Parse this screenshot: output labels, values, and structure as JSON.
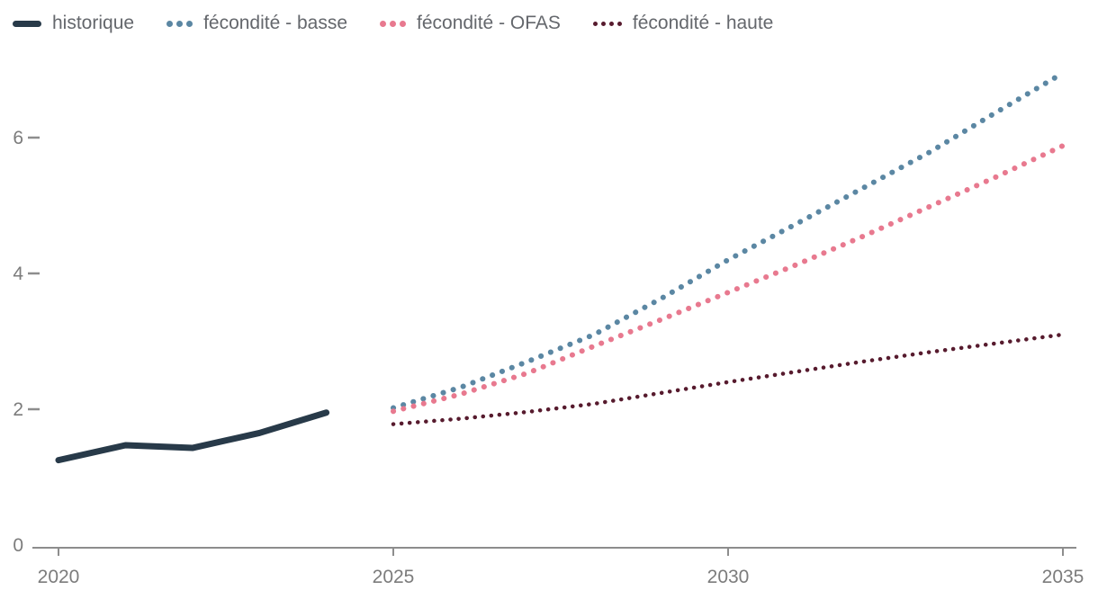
{
  "legend": {
    "items": [
      {
        "label": "historique",
        "color": "#283a49",
        "style": "solid"
      },
      {
        "label": "fécondité - basse",
        "color": "#5b87a3",
        "style": "dotted"
      },
      {
        "label": "fécondité - OFAS",
        "color": "#e8798f",
        "style": "dotted"
      },
      {
        "label": "fécondité - haute",
        "color": "#571b2e",
        "style": "dotted-small"
      }
    ]
  },
  "axes": {
    "x": {
      "tick_labels": [
        "2020",
        "2025",
        "2030",
        "2035"
      ],
      "tick_years": [
        2020,
        2025,
        2030,
        2035
      ]
    },
    "y": {
      "tick_labels": [
        "0",
        "2",
        "4",
        "6"
      ],
      "tick_values": [
        0,
        2,
        4,
        6
      ]
    }
  },
  "chart_data": {
    "type": "line",
    "title": "",
    "xlabel": "",
    "ylabel": "",
    "xlim": [
      2020,
      2035
    ],
    "ylim": [
      0,
      7.2
    ],
    "grid": false,
    "legend_position": "top-left",
    "series": [
      {
        "name": "historique",
        "style": "solid",
        "color": "#283a49",
        "x": [
          2020,
          2021,
          2022,
          2023,
          2024
        ],
        "values": [
          1.25,
          1.47,
          1.43,
          1.65,
          1.95
        ]
      },
      {
        "name": "fécondité - basse",
        "style": "dotted",
        "color": "#5b87a3",
        "x": [
          2025,
          2026,
          2027,
          2028,
          2029,
          2030,
          2031,
          2032,
          2033,
          2034,
          2035
        ],
        "values": [
          2.02,
          2.32,
          2.7,
          3.1,
          3.63,
          4.2,
          4.72,
          5.25,
          5.78,
          6.37,
          6.95
        ]
      },
      {
        "name": "fécondité - OFAS",
        "style": "dotted",
        "color": "#e8798f",
        "x": [
          2025,
          2026,
          2027,
          2028,
          2029,
          2030,
          2031,
          2032,
          2033,
          2034,
          2035
        ],
        "values": [
          1.97,
          2.22,
          2.53,
          2.93,
          3.32,
          3.72,
          4.12,
          4.54,
          4.98,
          5.42,
          5.88
        ]
      },
      {
        "name": "fécondité - haute",
        "style": "dotted-small",
        "color": "#571b2e",
        "x": [
          2025,
          2026,
          2027,
          2028,
          2029,
          2030,
          2031,
          2032,
          2033,
          2034,
          2035
        ],
        "values": [
          1.78,
          1.86,
          1.96,
          2.08,
          2.24,
          2.4,
          2.55,
          2.7,
          2.84,
          2.97,
          3.1
        ]
      }
    ]
  }
}
